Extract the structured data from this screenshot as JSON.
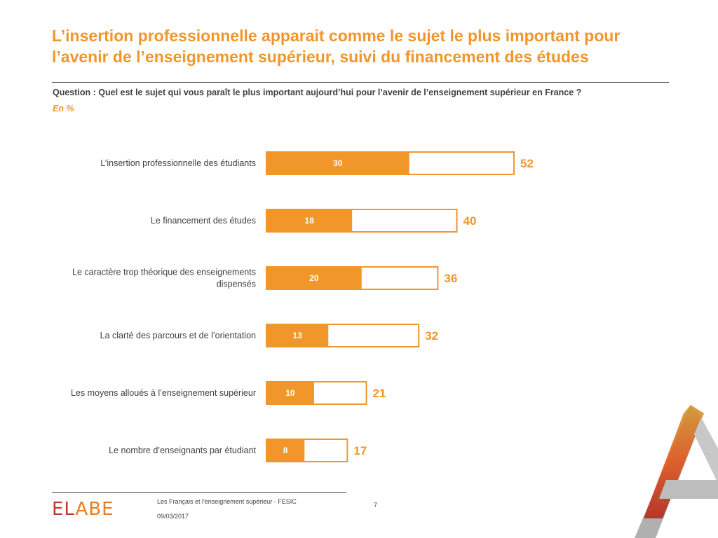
{
  "header": {
    "title_line1": "L’insertion professionnelle apparait comme le sujet le plus important pour",
    "title_line2": "l’avenir de l’enseignement supérieur, suivi du financement des études",
    "question": "Question : Quel est le sujet qui vous paraît le plus important aujourd’hui pour l’avenir de l’enseignement supérieur en France ?",
    "unit": "En %"
  },
  "colors": {
    "accent": "#f0962b",
    "text": "#404040"
  },
  "chart_data": {
    "type": "bar",
    "orientation": "horizontal",
    "stacked_overlay": true,
    "categories": [
      [
        "L’insertion professionnelle des étudiants"
      ],
      [
        "Le financement des études"
      ],
      [
        "Le caractère trop théorique des enseignements",
        "dispensés"
      ],
      [
        "La clarté des parcours et de l’orientation"
      ],
      [
        "Les moyens alloués à l’enseignement supérieur"
      ],
      [
        "Le nombre d’enseignants par étudiant"
      ]
    ],
    "series": [
      {
        "values": [
          30,
          18,
          20,
          13,
          10,
          8
        ],
        "color": "#f0962b",
        "label_color": "#ffffff"
      },
      {
        "values": [
          52,
          40,
          36,
          32,
          21,
          17
        ],
        "color": "#ffffff",
        "border": "#f0962b",
        "label_color": "#f0962b"
      }
    ],
    "xlim": [
      0,
      60
    ],
    "grid": false,
    "legend": "none"
  },
  "footer": {
    "logo_left": "EL",
    "logo_right": "ABE",
    "source": "Les Français et l'enseignement supérieur - FESIC",
    "date": "09/03/2017",
    "page": "7"
  }
}
